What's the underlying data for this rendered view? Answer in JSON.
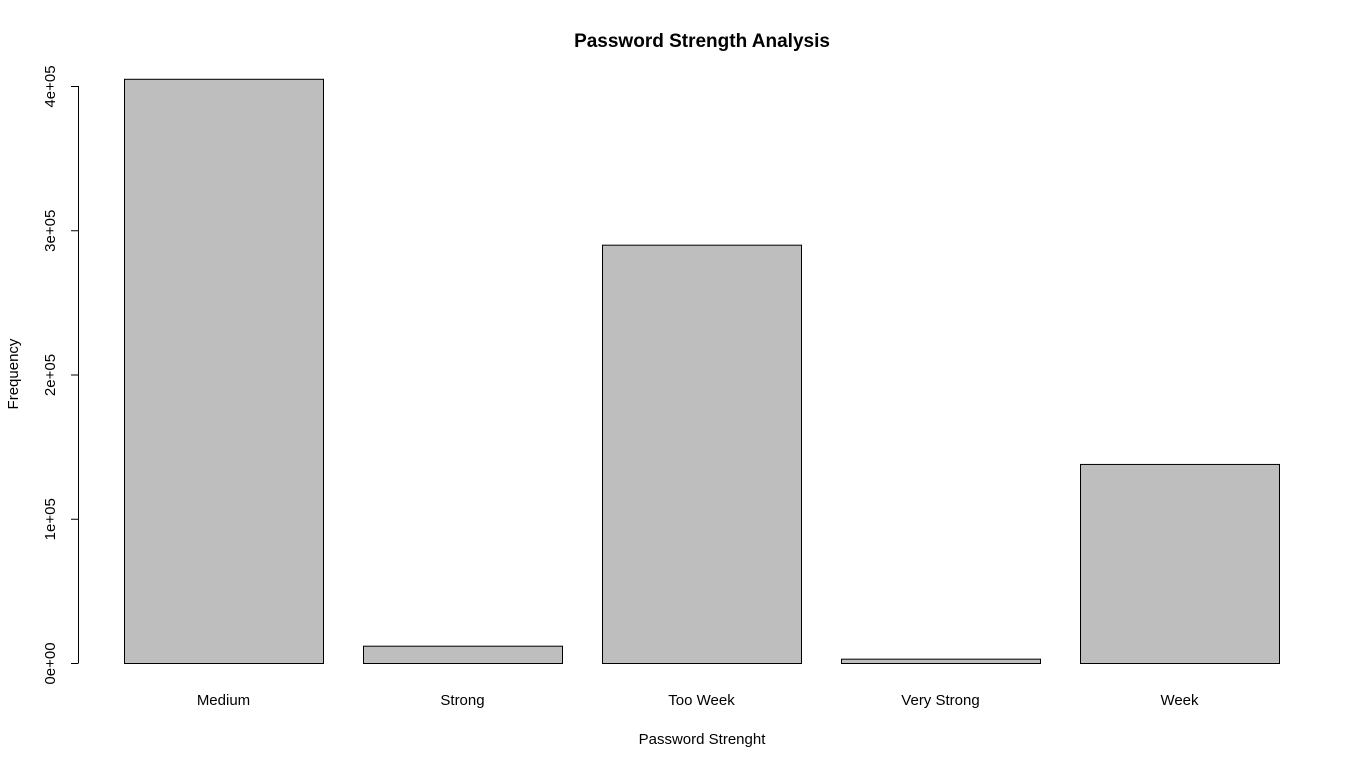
{
  "chart_data": {
    "type": "bar",
    "title": "Password Strength Analysis",
    "xlabel": "Password Strenght",
    "ylabel": "Frequency",
    "categories": [
      "Medium",
      "Strong",
      "Too Week",
      "Very Strong",
      "Week"
    ],
    "values": [
      405000,
      12000,
      290000,
      3000,
      138000
    ],
    "ylim": [
      0,
      400000
    ],
    "yticks": [
      0,
      100000,
      200000,
      300000,
      400000
    ],
    "ytick_labels": [
      "0e+00",
      "1e+05",
      "2e+05",
      "3e+05",
      "4e+05"
    ],
    "grid": false,
    "legend": "none",
    "bar_fill": "#bebebe",
    "bar_stroke": "#000000"
  }
}
